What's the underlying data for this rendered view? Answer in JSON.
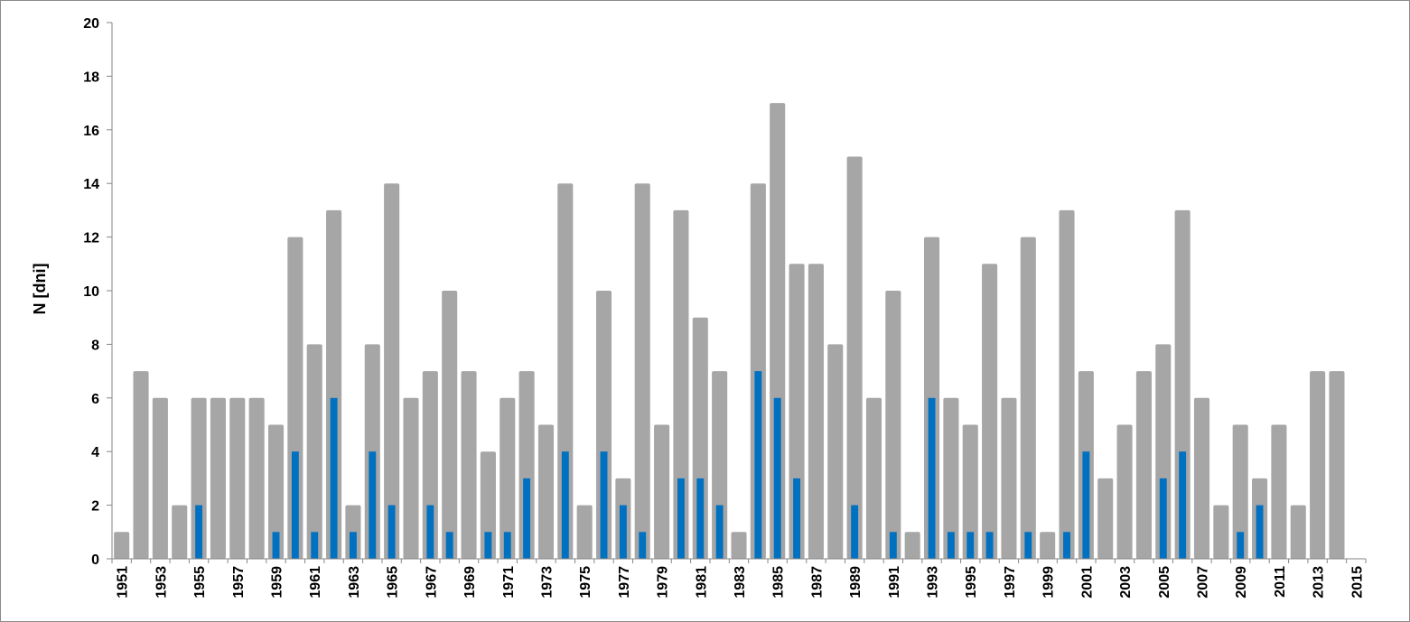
{
  "chart_data": {
    "type": "bar",
    "title": "",
    "xlabel": "",
    "ylabel": "N [dni]",
    "ylim": [
      0,
      20
    ],
    "yticks": [
      0,
      2,
      4,
      6,
      8,
      10,
      12,
      14,
      16,
      18,
      20
    ],
    "grid": false,
    "legend": "none",
    "x": [
      1951,
      1952,
      1953,
      1954,
      1955,
      1956,
      1957,
      1958,
      1959,
      1960,
      1961,
      1962,
      1963,
      1964,
      1965,
      1966,
      1967,
      1968,
      1969,
      1970,
      1971,
      1972,
      1973,
      1974,
      1975,
      1976,
      1977,
      1978,
      1979,
      1980,
      1981,
      1982,
      1983,
      1984,
      1985,
      1986,
      1987,
      1988,
      1989,
      1990,
      1991,
      1992,
      1993,
      1994,
      1995,
      1996,
      1997,
      1998,
      1999,
      2000,
      2001,
      2002,
      2003,
      2004,
      2005,
      2006,
      2007,
      2008,
      2009,
      2010,
      2011,
      2012,
      2013,
      2014
    ],
    "xticks": [
      "1951",
      "1953",
      "1955",
      "1957",
      "1959",
      "1961",
      "1963",
      "1965",
      "1967",
      "1969",
      "1971",
      "1973",
      "1975",
      "1977",
      "1979",
      "1981",
      "1983",
      "1985",
      "1987",
      "1989",
      "1991",
      "1993",
      "1995",
      "1997",
      "1999",
      "2001",
      "2003",
      "2005",
      "2007",
      "2009",
      "2011",
      "2013",
      "2015"
    ],
    "series": [
      {
        "color": "#a6a6a6",
        "values": [
          1,
          7,
          6,
          2,
          6,
          6,
          6,
          6,
          5,
          12,
          8,
          13,
          2,
          8,
          14,
          6,
          7,
          10,
          7,
          4,
          6,
          7,
          5,
          14,
          2,
          10,
          3,
          14,
          5,
          13,
          9,
          7,
          1,
          14,
          17,
          11,
          11,
          8,
          15,
          6,
          10,
          1,
          12,
          6,
          5,
          11,
          6,
          12,
          1,
          13,
          7,
          3,
          5,
          7,
          8,
          13,
          6,
          2,
          5,
          3,
          5,
          2,
          7,
          7
        ]
      },
      {
        "color": "#0070c0",
        "values": [
          0,
          0,
          0,
          0,
          2,
          0,
          0,
          0,
          1,
          4,
          1,
          6,
          1,
          4,
          2,
          0,
          2,
          1,
          0,
          1,
          1,
          3,
          0,
          4,
          0,
          4,
          2,
          1,
          0,
          3,
          3,
          2,
          0,
          7,
          6,
          3,
          0,
          0,
          2,
          0,
          1,
          0,
          6,
          1,
          1,
          1,
          0,
          1,
          0,
          1,
          4,
          0,
          0,
          0,
          3,
          4,
          0,
          0,
          1,
          2,
          0,
          0,
          0,
          0
        ]
      }
    ]
  }
}
